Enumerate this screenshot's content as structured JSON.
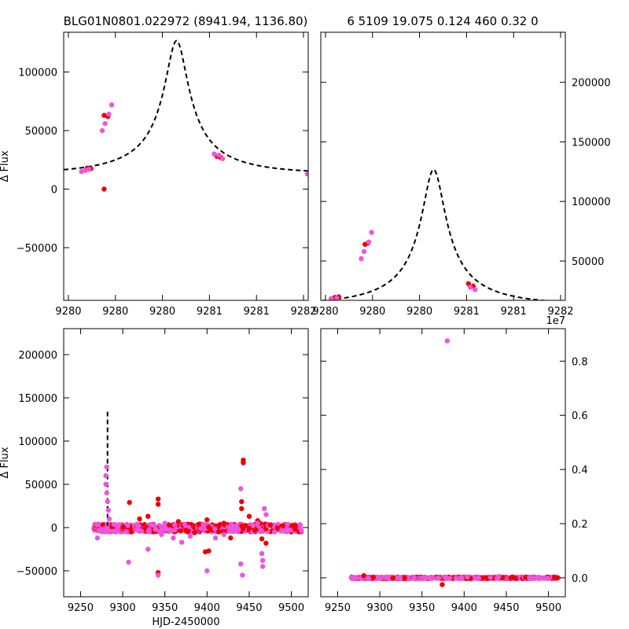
{
  "header": {
    "title_left": "BLG01N0801.022972 (8941.94, 1136.80)",
    "title_right": "6 5109 19.075 0.124 460  0.32    0"
  },
  "chart_data": [
    {
      "id": "top-left",
      "type": "scatter",
      "title": "BLG01N0801.022972 (8941.94, 1136.80)",
      "xlabel": "",
      "ylabel": "Δ Flux",
      "xlim": [
        9279.45,
        9282.05
      ],
      "ylim": [
        -95000,
        134000
      ],
      "xticks": [
        9279.5,
        9280.0,
        9280.5,
        9281.0,
        9281.5,
        9282.0
      ],
      "xtick_labels": [
        "9280",
        "9280",
        "9280",
        "9281",
        "9281",
        "9282"
      ],
      "yticks": [
        -50000,
        0,
        50000,
        100000
      ],
      "ytick_labels": [
        "−50000",
        "0",
        "50000",
        "100000"
      ],
      "model": {
        "t0": 9280.65,
        "u0": 0.124,
        "tE": 1.0,
        "fs": 16000,
        "base": 13000
      },
      "series": [
        {
          "name": "red",
          "color": "#ee0000",
          "points": [
            [
              9279.7,
              18000
            ],
            [
              9279.74,
              17500
            ],
            [
              9279.88,
              63000
            ],
            [
              9279.92,
              62000
            ],
            [
              9281.08,
              28000
            ],
            [
              9281.12,
              27000
            ],
            [
              9279.88,
              0
            ]
          ]
        },
        {
          "name": "magenta",
          "color": "#ee55dd",
          "points": [
            [
              9279.64,
              15000
            ],
            [
              9279.68,
              16000
            ],
            [
              9279.72,
              17000
            ],
            [
              9279.86,
              50000
            ],
            [
              9279.89,
              56000
            ],
            [
              9279.93,
              64000
            ],
            [
              9279.96,
              72000
            ],
            [
              9281.05,
              30000
            ],
            [
              9281.1,
              29000
            ],
            [
              9281.14,
              26000
            ],
            [
              9282.04,
              13000
            ]
          ]
        }
      ]
    },
    {
      "id": "top-right",
      "type": "scatter",
      "title": "6 5109 19.075 0.124 460  0.32    0",
      "xlabel": "",
      "ylabel": "",
      "xlim": [
        9279.45,
        9282.05
      ],
      "ylim": [
        17000,
        242000
      ],
      "xticks": [
        9279.5,
        9280.0,
        9280.5,
        9281.0,
        9281.5,
        9282.0
      ],
      "xtick_labels": [
        "9280",
        "9280",
        "9280",
        "9281",
        "9281",
        "9282"
      ],
      "yticks": [
        50000,
        100000,
        150000,
        200000
      ],
      "ytick_labels": [
        "50000",
        "100000",
        "150000",
        "200000"
      ],
      "model": {
        "t0": 9280.65,
        "u0": 0.124,
        "tE": 1.0,
        "fs": 16000,
        "base": 13000
      },
      "series": [
        {
          "name": "red",
          "color": "#ee0000",
          "points": [
            [
              9279.6,
              19500
            ],
            [
              9279.64,
              20000
            ],
            [
              9279.92,
              64000
            ],
            [
              9279.95,
              65000
            ],
            [
              9281.02,
              31000
            ],
            [
              9281.07,
              29000
            ]
          ]
        },
        {
          "name": "magenta",
          "color": "#ee55dd",
          "points": [
            [
              9279.56,
              18500
            ],
            [
              9279.62,
              19000
            ],
            [
              9279.88,
              52000
            ],
            [
              9279.91,
              58000
            ],
            [
              9279.96,
              66000
            ],
            [
              9279.99,
              74000
            ],
            [
              9281.04,
              28000
            ],
            [
              9281.09,
              26000
            ]
          ]
        }
      ]
    },
    {
      "id": "bottom-left",
      "type": "scatter",
      "title": "",
      "xlabel": "HJD-2450000",
      "ylabel": "Δ Flux",
      "xlim": [
        9230,
        9520
      ],
      "ylim": [
        -80000,
        230000
      ],
      "xticks": [
        9250,
        9300,
        9350,
        9400,
        9450,
        9500
      ],
      "xtick_labels": [
        "9250",
        "9300",
        "9350",
        "9400",
        "9450",
        "9500"
      ],
      "yticks": [
        -50000,
        0,
        50000,
        100000,
        150000,
        200000
      ],
      "ytick_labels": [
        "−50000",
        "0",
        "50000",
        "100000",
        "150000",
        "200000"
      ],
      "baseline_band": {
        "x_start": 9266,
        "x_end": 9512,
        "y_min": -5000,
        "y_max": 4000
      },
      "series": [
        {
          "name": "red",
          "color": "#ee0000",
          "points": [
            [
              9308,
              29000
            ],
            [
              9320,
              10000
            ],
            [
              9330,
              13000
            ],
            [
              9342,
              33000
            ],
            [
              9342,
              27000
            ],
            [
              9342,
              -52000
            ],
            [
              9355,
              3000
            ],
            [
              9366,
              7000
            ],
            [
              9375,
              -3000
            ],
            [
              9385,
              -6000
            ],
            [
              9398,
              -28000
            ],
            [
              9402,
              -27000
            ],
            [
              9400,
              9000
            ],
            [
              9420,
              5000
            ],
            [
              9428,
              -12000
            ],
            [
              9441,
              30000
            ],
            [
              9441,
              22000
            ],
            [
              9443,
              78000
            ],
            [
              9443,
              75000
            ],
            [
              9450,
              13000
            ],
            [
              9460,
              8000
            ],
            [
              9463,
              5000
            ],
            [
              9465,
              -13000
            ],
            [
              9470,
              -18000
            ],
            [
              9475,
              3000
            ],
            [
              9490,
              2000
            ],
            [
              9505,
              1000
            ]
          ]
        },
        {
          "name": "magenta",
          "color": "#ee55dd",
          "points": [
            [
              9270,
              -12000
            ],
            [
              9278,
              -5000
            ],
            [
              9280,
              60000
            ],
            [
              9280,
              50000
            ],
            [
              9281,
              70000
            ],
            [
              9281,
              40000
            ],
            [
              9282,
              30000
            ],
            [
              9283,
              20000
            ],
            [
              9284,
              10000
            ],
            [
              9307,
              -40000
            ],
            [
              9330,
              -25000
            ],
            [
              9342,
              -55000
            ],
            [
              9346,
              -8000
            ],
            [
              9360,
              -12000
            ],
            [
              9370,
              -17000
            ],
            [
              9380,
              -10000
            ],
            [
              9400,
              -50000
            ],
            [
              9410,
              -12000
            ],
            [
              9440,
              45000
            ],
            [
              9440,
              -42000
            ],
            [
              9442,
              -55000
            ],
            [
              9460,
              5000
            ],
            [
              9465,
              -30000
            ],
            [
              9466,
              -38000
            ],
            [
              9466,
              -45000
            ],
            [
              9468,
              22000
            ],
            [
              9470,
              15000
            ],
            [
              9350,
              5000
            ],
            [
              9420,
              -8000
            ],
            [
              9480,
              -5000
            ]
          ]
        }
      ]
    },
    {
      "id": "bottom-right",
      "type": "scatter",
      "title": "",
      "xlabel": "",
      "ylabel": "",
      "offset_label": "1e7",
      "xlim": [
        9230,
        9520
      ],
      "ylim": [
        -0.07,
        0.92
      ],
      "xticks": [
        9250,
        9300,
        9350,
        9400,
        9450,
        9500
      ],
      "xtick_labels": [
        "9250",
        "9300",
        "9350",
        "9400",
        "9450",
        "9500"
      ],
      "yticks": [
        0.0,
        0.2,
        0.4,
        0.6,
        0.8
      ],
      "ytick_labels": [
        "0.0",
        "0.2",
        "0.4",
        "0.6",
        "0.8"
      ],
      "baseline_band": {
        "x_start": 9266,
        "x_end": 9512,
        "y_min": -0.003,
        "y_max": 0.003
      },
      "series": [
        {
          "name": "red",
          "color": "#ee0000",
          "points": [
            [
              9374,
              -0.025
            ],
            [
              9281,
              0.008
            ]
          ]
        },
        {
          "name": "magenta",
          "color": "#ee55dd",
          "points": [
            [
              9380,
              0.875
            ],
            [
              9441,
              0.005
            ],
            [
              9350,
              0.0
            ],
            [
              9300,
              0.0
            ]
          ]
        }
      ]
    }
  ]
}
